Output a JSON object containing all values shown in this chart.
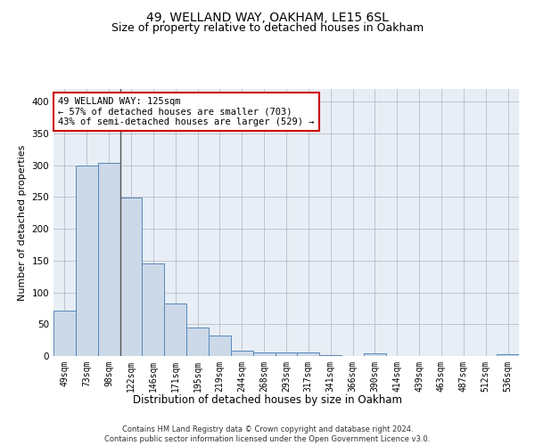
{
  "title": "49, WELLAND WAY, OAKHAM, LE15 6SL",
  "subtitle": "Size of property relative to detached houses in Oakham",
  "xlabel": "Distribution of detached houses by size in Oakham",
  "ylabel": "Number of detached properties",
  "categories": [
    "49sqm",
    "73sqm",
    "98sqm",
    "122sqm",
    "146sqm",
    "171sqm",
    "195sqm",
    "219sqm",
    "244sqm",
    "268sqm",
    "293sqm",
    "317sqm",
    "341sqm",
    "366sqm",
    "390sqm",
    "414sqm",
    "439sqm",
    "463sqm",
    "487sqm",
    "512sqm",
    "536sqm"
  ],
  "values": [
    72,
    300,
    304,
    249,
    145,
    83,
    45,
    32,
    9,
    6,
    6,
    6,
    1,
    0,
    4,
    0,
    0,
    0,
    0,
    0,
    3
  ],
  "bar_color": "#ccd9e8",
  "bar_edge_color": "#5588bb",
  "highlight_line_color": "#555555",
  "annotation_text": "49 WELLAND WAY: 125sqm\n← 57% of detached houses are smaller (703)\n43% of semi-detached houses are larger (529) →",
  "annotation_box_color": "#ffffff",
  "annotation_box_edge_color": "#cc0000",
  "ylim": [
    0,
    420
  ],
  "yticks": [
    0,
    50,
    100,
    150,
    200,
    250,
    300,
    350,
    400
  ],
  "grid_color": "#bbbbcc",
  "background_color": "#e8eef5",
  "footer_text": "Contains HM Land Registry data © Crown copyright and database right 2024.\nContains public sector information licensed under the Open Government Licence v3.0.",
  "title_fontsize": 10,
  "subtitle_fontsize": 9,
  "tick_fontsize": 7,
  "ylabel_fontsize": 8,
  "xlabel_fontsize": 8.5,
  "annotation_fontsize": 7.5,
  "footer_fontsize": 6
}
